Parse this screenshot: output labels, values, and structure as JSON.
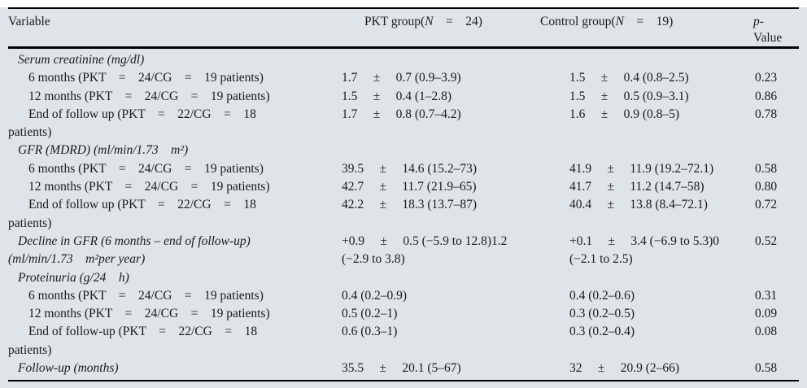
{
  "table": {
    "background_color": "#dfe4e8",
    "rule_color": "#000000",
    "header": {
      "variable": "Variable",
      "pkt_prefix": "PKT group(",
      "pkt_n": "N",
      "pkt_suffix": "    =    24)",
      "control_prefix": "Control group(",
      "control_n": "N",
      "control_suffix": "    =    19)",
      "p_italic": "p",
      "p_dash": "-",
      "p_line2": "Value"
    },
    "rows": [
      {
        "type": "section",
        "label": "Serum creatinine (mg/dl)",
        "pkt": "",
        "control": "",
        "p": ""
      },
      {
        "type": "data",
        "label": "6 months (PKT    =    24/CG    =    19 patients)",
        "pkt": "1.7     ±     0.7 (0.9–3.9)",
        "control": "1.5     ±     0.4 (0.8–2.5)",
        "p": "0.23"
      },
      {
        "type": "data",
        "label": "12 months (PKT    =    24/CG    =    19 patients)",
        "pkt": "1.5     ±     0.4 (1–2.8)",
        "control": "1.5     ±     0.5 (0.9–3.1)",
        "p": "0.86"
      },
      {
        "type": "data",
        "label": "End of follow up (PKT    =    22/CG    =    18\npatients)",
        "pkt": "1.7     ±     0.8 (0.7–4.2)",
        "control": "1.6     ±     0.9 (0.8–5)",
        "p": "0.78"
      },
      {
        "type": "section",
        "label": "GFR (MDRD) (ml/min/1.73    m²)",
        "pkt": "",
        "control": "",
        "p": ""
      },
      {
        "type": "data",
        "label": "6 months (PKT    =    24/CG    =    19 patients)",
        "pkt": "39.5     ±     14.6 (15.2–73)",
        "control": "41.9     ±     11.9 (19.2–72.1)",
        "p": "0.58"
      },
      {
        "type": "data",
        "label": "12 months (PKT    =    24/CG    =    19 patients)",
        "pkt": "42.7     ±     11.7 (21.9–65)",
        "control": "41.7     ±     11.2 (14.7–58)",
        "p": "0.80"
      },
      {
        "type": "data",
        "label": "End of follow up (PKT    =    22/CG    =    18\npatients)",
        "pkt": "42.2     ±     18.3 (13.7–87)",
        "control": "40.4     ±     13.8 (8.4–72.1)",
        "p": "0.72"
      },
      {
        "type": "section",
        "label": "Decline in GFR (6 months – end of follow-up)\n(ml/min/1.73    m²per year)",
        "pkt": "+0.9     ±     0.5 (−5.9 to 12.8)1.2\n(−2.9 to 3.8)",
        "control": "+0.1     ±     3.4 (−6.9 to 5.3)0\n(−2.1 to 2.5)",
        "p": "0.52"
      },
      {
        "type": "section",
        "label": "Proteinuria (g/24    h)",
        "pkt": "",
        "control": "",
        "p": ""
      },
      {
        "type": "data",
        "label": "6 months (PKT    =    24/CG    =    19 patients)",
        "pkt": "0.4 (0.2–0.9)",
        "control": "0.4 (0.2–0.6)",
        "p": "0.31"
      },
      {
        "type": "data",
        "label": "12 months (PKT    =    24/CG    =    19 patients)",
        "pkt": "0.5 (0.2–1)",
        "control": "0.3 (0.2–0.5)",
        "p": "0.09"
      },
      {
        "type": "data",
        "label": "End of follow-up (PKT    =    22/CG    =    18\npatients)",
        "pkt": "0.6 (0.3–1)",
        "control": "0.3 (0.2–0.4)",
        "p": "0.08"
      },
      {
        "type": "section",
        "label": "Follow-up (months)",
        "pkt": "35.5     ±     20.1 (5–67)",
        "control": "32     ±     20.9 (2–66)",
        "p": "0.58"
      }
    ]
  }
}
